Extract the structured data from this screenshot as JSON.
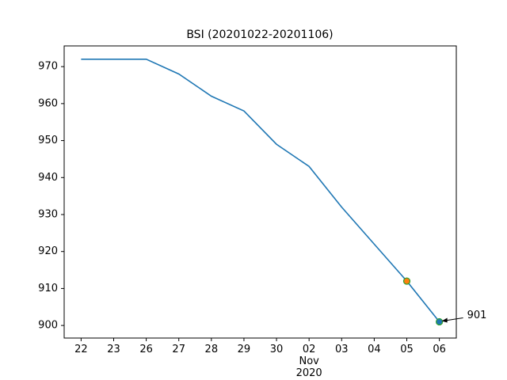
{
  "chart_data": {
    "type": "line",
    "title": "BSI (20201022-20201106)",
    "categories": [
      "22",
      "23",
      "26",
      "27",
      "28",
      "29",
      "30",
      "02\nNov\n2020",
      "03",
      "04",
      "05",
      "06"
    ],
    "series": [
      {
        "name": "BSI",
        "color": "#1f77b4",
        "values": [
          972,
          972,
          972,
          968,
          962,
          958,
          949,
          943,
          932,
          922,
          912,
          901
        ]
      }
    ],
    "markers": [
      {
        "category": "05",
        "value": 912,
        "color": "#ff7f0e",
        "edgecolor": "#2ca02c"
      },
      {
        "category": "06",
        "value": 901,
        "color": "#1f77b4",
        "edgecolor": "#2ca02c"
      }
    ],
    "annotations": [
      {
        "text": "901",
        "category": "06",
        "value": 901
      }
    ],
    "ylim": [
      896.6,
      975.6
    ],
    "yticks": [
      900,
      910,
      920,
      930,
      940,
      950,
      960,
      970
    ]
  }
}
